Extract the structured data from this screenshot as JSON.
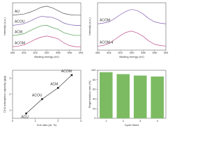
{
  "chart_data": [
    {
      "type": "line",
      "x_label": "Binding energy (eV)",
      "y_label": "Intensity (a.u.)",
      "x": [
        406,
        405,
        404,
        403,
        402,
        401,
        400,
        399,
        398,
        397,
        396,
        395,
        394
      ],
      "xlim": [
        406,
        394
      ],
      "xticks": [
        406,
        404,
        402,
        400,
        398,
        396,
        394
      ],
      "ylim": [
        0,
        4.2
      ],
      "series": [
        {
          "name": "AU",
          "color": "#555555",
          "values": [
            3.1,
            3.15,
            3.2,
            3.35,
            3.55,
            3.8,
            3.9,
            3.75,
            3.5,
            3.25,
            3.15,
            3.1,
            3.1
          ]
        },
        {
          "name": "ACOU",
          "color": "#7a5aa8",
          "values": [
            2.2,
            2.25,
            2.35,
            2.55,
            2.8,
            3.0,
            2.95,
            2.9,
            2.7,
            2.4,
            2.25,
            2.2,
            2.2
          ]
        },
        {
          "name": "ACM",
          "color": "#4f9a52",
          "values": [
            1.3,
            1.35,
            1.45,
            1.7,
            1.95,
            2.15,
            2.2,
            2.0,
            1.85,
            1.55,
            1.4,
            1.3,
            1.3
          ]
        },
        {
          "name": "ACOM",
          "color": "#c0508a",
          "values": [
            0.3,
            0.35,
            0.45,
            0.7,
            0.95,
            1.15,
            1.25,
            1.15,
            1.0,
            0.65,
            0.4,
            0.3,
            0.3
          ]
        }
      ]
    },
    {
      "type": "line",
      "x_label": "Binding energy (eV)",
      "y_label": "Intensity (a.u.)",
      "x": [
        406,
        405,
        404,
        403,
        402,
        401,
        400,
        399,
        398,
        397,
        396,
        395,
        394
      ],
      "xlim": [
        406,
        394
      ],
      "xticks": [
        406,
        404,
        402,
        400,
        398,
        396,
        394
      ],
      "ylim": [
        0,
        3.6
      ],
      "series": [
        {
          "name": "ACOM",
          "color": "#8a5fb0",
          "values": [
            2.0,
            2.05,
            2.15,
            2.4,
            2.7,
            2.95,
            3.1,
            3.0,
            2.75,
            2.4,
            2.15,
            2.05,
            2.0
          ]
        },
        {
          "name": "ACOM-4",
          "color": "#c05090",
          "values": [
            0.3,
            0.35,
            0.5,
            0.8,
            1.1,
            1.35,
            1.45,
            1.3,
            1.05,
            0.7,
            0.45,
            0.35,
            0.3
          ]
        }
      ]
    },
    {
      "type": "scatter",
      "x_label": "N-6 ratio (at. %)",
      "y_label": "CH4 adsorption capacity (g/g)",
      "categories": [
        "ACU",
        "ACOU",
        "ACM",
        "ACOM"
      ],
      "x": [
        0.6,
        1.3,
        2.0,
        2.6
      ],
      "values": [
        0.8,
        1.7,
        2.4,
        3.2
      ],
      "color": "#222222",
      "xlim": [
        0,
        3
      ],
      "xticks": [
        0,
        1,
        2,
        3
      ],
      "ylim": [
        0.5,
        3.5
      ],
      "yticks": [
        1,
        2,
        3
      ]
    },
    {
      "type": "bar",
      "x_label": "Cycle times",
      "y_label": "Regeneration rate (%)",
      "categories": [
        "1",
        "2",
        "3",
        "4"
      ],
      "values": [
        96,
        92,
        89,
        87
      ],
      "color": "#7dbb63",
      "ylim": [
        0,
        100
      ],
      "yticks": [
        0,
        20,
        40,
        60,
        80,
        100
      ]
    }
  ]
}
